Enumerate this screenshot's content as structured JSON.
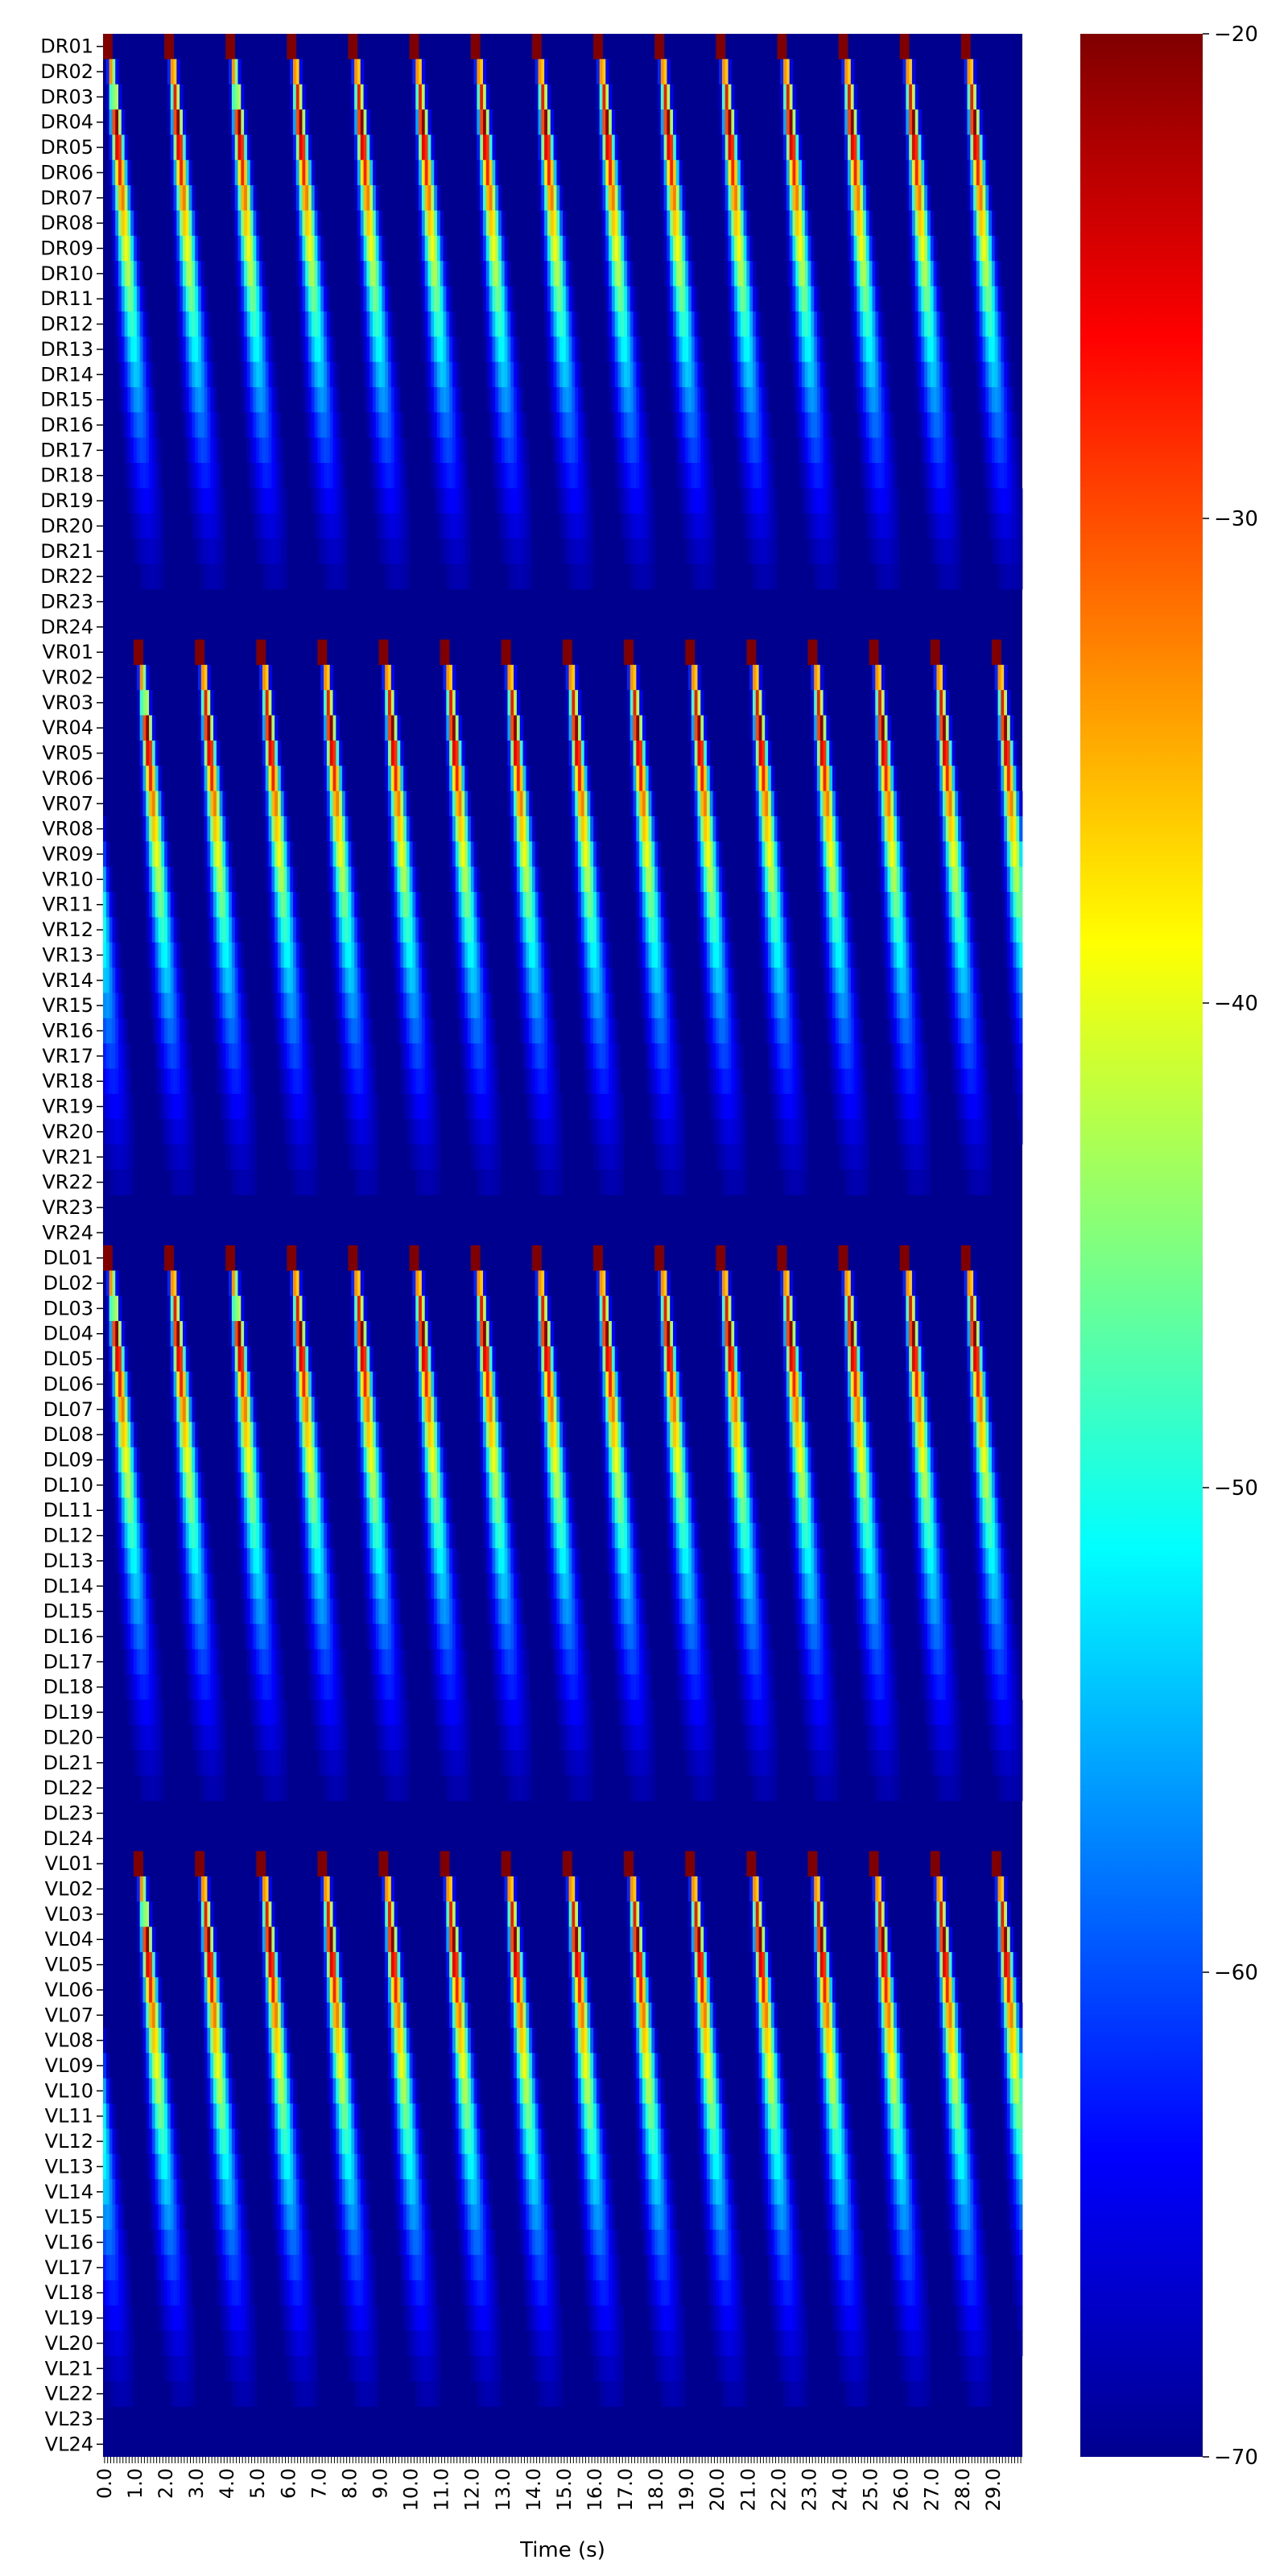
{
  "chart_data": {
    "type": "heatmap",
    "title": "",
    "xlabel": "Time (s)",
    "ylabel": "",
    "rows": [
      "DR01",
      "DR02",
      "DR03",
      "DR04",
      "DR05",
      "DR06",
      "DR07",
      "DR08",
      "DR09",
      "DR10",
      "DR11",
      "DR12",
      "DR13",
      "DR14",
      "DR15",
      "DR16",
      "DR17",
      "DR18",
      "DR19",
      "DR20",
      "DR21",
      "DR22",
      "DR23",
      "DR24",
      "VR01",
      "VR02",
      "VR03",
      "VR04",
      "VR05",
      "VR06",
      "VR07",
      "VR08",
      "VR09",
      "VR10",
      "VR11",
      "VR12",
      "VR13",
      "VR14",
      "VR15",
      "VR16",
      "VR17",
      "VR18",
      "VR19",
      "VR20",
      "VR21",
      "VR22",
      "VR23",
      "VR24",
      "DL01",
      "DL02",
      "DL03",
      "DL04",
      "DL05",
      "DL06",
      "DL07",
      "DL08",
      "DL09",
      "DL10",
      "DL11",
      "DL12",
      "DL13",
      "DL14",
      "DL15",
      "DL16",
      "DL17",
      "DL18",
      "DL19",
      "DL20",
      "DL21",
      "DL22",
      "DL23",
      "DL24",
      "VL01",
      "VL02",
      "VL03",
      "VL04",
      "VL05",
      "VL06",
      "VL07",
      "VL08",
      "VL09",
      "VL10",
      "VL11",
      "VL12",
      "VL13",
      "VL14",
      "VL15",
      "VL16",
      "VL17",
      "VL18",
      "VL19",
      "VL20",
      "VL21",
      "VL22",
      "VL23",
      "VL24"
    ],
    "x_tick_labels": [
      "0.0",
      "1.0",
      "2.0",
      "3.0",
      "4.0",
      "5.0",
      "6.0",
      "7.0",
      "8.0",
      "9.0",
      "10.0",
      "11.0",
      "12.0",
      "13.0",
      "14.0",
      "15.0",
      "16.0",
      "17.0",
      "18.0",
      "19.0",
      "20.0",
      "21.0",
      "22.0",
      "23.0",
      "24.0",
      "25.0",
      "26.0",
      "27.0",
      "28.0",
      "29.0"
    ],
    "xlim": [
      0,
      30
    ],
    "colorbar": {
      "min": -70,
      "max": -20,
      "colormap": "jet",
      "tick_labels": [
        "−70",
        "−60",
        "−50",
        "−40",
        "−30",
        "−20"
      ]
    },
    "pattern": {
      "wave_period_s": 2.0,
      "groups": [
        {
          "name": "DR",
          "phase_s": 0.0
        },
        {
          "name": "VR",
          "phase_s": 1.0
        },
        {
          "name": "DL",
          "phase_s": 0.0
        },
        {
          "name": "VL",
          "phase_s": 1.0
        }
      ],
      "peak_value": -20,
      "baseline_value": -70,
      "description": "periodic traveling waves; each wave starts at segment 01 and propagates to segment 24 with decreasing amplitude"
    }
  }
}
